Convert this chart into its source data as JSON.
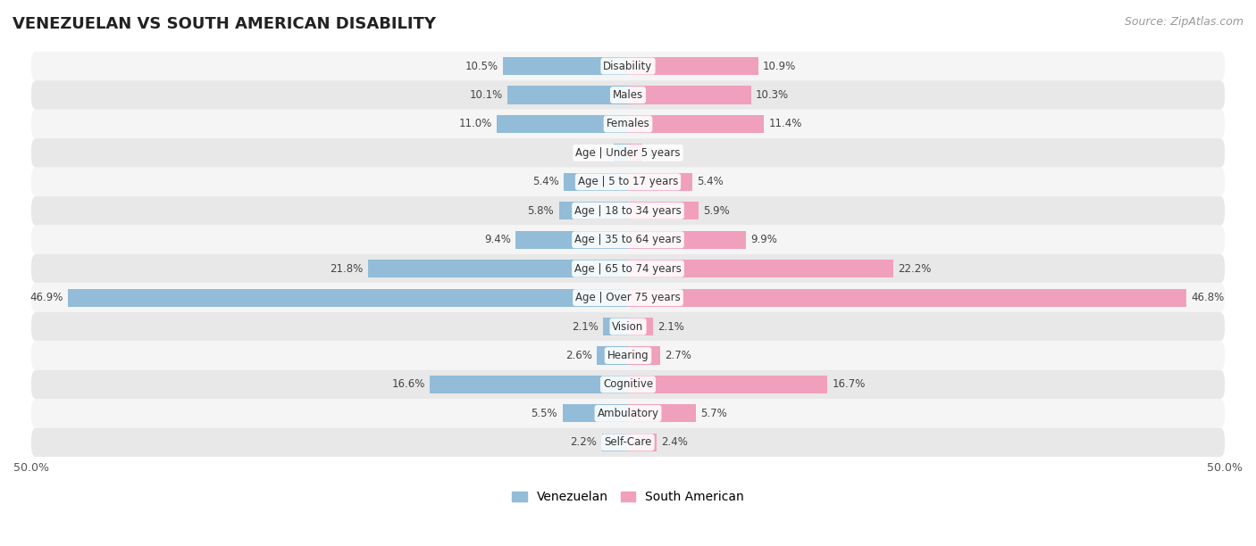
{
  "title": "VENEZUELAN VS SOUTH AMERICAN DISABILITY",
  "source": "Source: ZipAtlas.com",
  "categories": [
    "Disability",
    "Males",
    "Females",
    "Age | Under 5 years",
    "Age | 5 to 17 years",
    "Age | 18 to 34 years",
    "Age | 35 to 64 years",
    "Age | 65 to 74 years",
    "Age | Over 75 years",
    "Vision",
    "Hearing",
    "Cognitive",
    "Ambulatory",
    "Self-Care"
  ],
  "venezuelan": [
    10.5,
    10.1,
    11.0,
    1.2,
    5.4,
    5.8,
    9.4,
    21.8,
    46.9,
    2.1,
    2.6,
    16.6,
    5.5,
    2.2
  ],
  "south_american": [
    10.9,
    10.3,
    11.4,
    1.2,
    5.4,
    5.9,
    9.9,
    22.2,
    46.8,
    2.1,
    2.7,
    16.7,
    5.7,
    2.4
  ],
  "venezuelan_color": "#92bcd8",
  "south_american_color": "#f0a0bc",
  "row_bg_even": "#f5f5f5",
  "row_bg_odd": "#e8e8e8",
  "background_color": "#ffffff",
  "axis_limit": 50.0,
  "legend_venezuelan": "Venezuelan",
  "legend_south_american": "South American",
  "title_fontsize": 13,
  "label_fontsize": 8.5,
  "value_fontsize": 8.5,
  "source_fontsize": 9
}
